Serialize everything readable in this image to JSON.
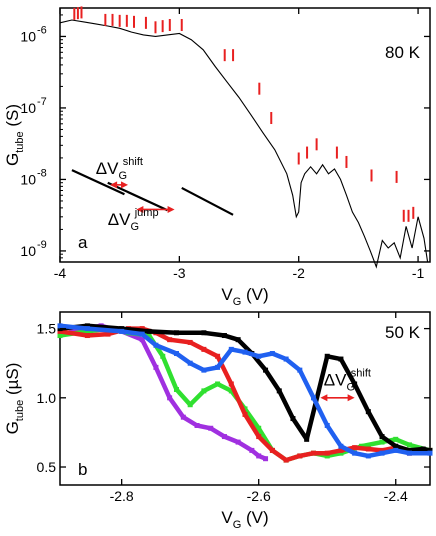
{
  "chart_data": [
    {
      "id": "a",
      "type": "line",
      "panel_label": "a",
      "annotation": "80 K",
      "xlabel": {
        "main": "V",
        "sub": "G",
        "unit": " (V)"
      },
      "ylabel": {
        "main": "G",
        "sub": "tube",
        "unit": " (S)"
      },
      "xlim": [
        -4.0,
        -0.9
      ],
      "ylim": [
        7e-10,
        2.5e-06
      ],
      "yscale": "log",
      "xticks": [
        -4,
        -3,
        -2,
        -1
      ],
      "xticklabels": [
        "-4",
        "-3",
        "-2",
        "-1"
      ],
      "yticks": [
        1e-09,
        1e-08,
        1e-07,
        1e-06
      ],
      "yticklabels": [
        {
          "base": "10",
          "exp": "-9"
        },
        {
          "base": "10",
          "exp": "-8"
        },
        {
          "base": "10",
          "exp": "-7"
        },
        {
          "base": "10",
          "exp": "-6"
        }
      ],
      "series": [
        {
          "color": "#000000",
          "x": [
            -4.0,
            -3.9,
            -3.8,
            -3.7,
            -3.6,
            -3.5,
            -3.4,
            -3.3,
            -3.2,
            -3.1,
            -3.0,
            -2.9,
            -2.8,
            -2.7,
            -2.6,
            -2.5,
            -2.4,
            -2.3,
            -2.2,
            -2.1,
            -2.05,
            -2.02,
            -2.0,
            -1.98,
            -1.95,
            -1.9,
            -1.85,
            -1.8,
            -1.75,
            -1.7,
            -1.65,
            -1.6,
            -1.55,
            -1.5,
            -1.45,
            -1.4,
            -1.35,
            -1.3,
            -1.25,
            -1.2,
            -1.15,
            -1.1,
            -1.05,
            -1.0,
            -0.95,
            -0.92
          ],
          "y": [
            1.55e-06,
            1.7e-06,
            1.6e-06,
            1.5e-06,
            1.4e-06,
            1.3e-06,
            1.15e-06,
            1.05e-06,
            1e-06,
            1.05e-06,
            1.1e-06,
            9e-07,
            6.5e-07,
            3.8e-07,
            2.3e-07,
            1.4e-07,
            8e-08,
            4.5e-08,
            2.6e-08,
            1.2e-08,
            6e-09,
            3e-09,
            3.5e-09,
            9e-09,
            1.2e-08,
            1.5e-08,
            1.2e-08,
            1.6e-08,
            1.2e-08,
            1.4e-08,
            1e-08,
            6e-09,
            3.5e-09,
            2.5e-09,
            1.6e-09,
            1e-09,
            6e-10,
            1.4e-09,
            1.1e-09,
            1.3e-09,
            8e-10,
            2.2e-09,
            1.1e-09,
            3e-09,
            1.5e-09,
            7e-10
          ]
        }
      ],
      "jump_marks": {
        "color": "#e82020",
        "points": [
          [
            -3.88,
            2e-06
          ],
          [
            -3.85,
            2.05e-06
          ],
          [
            -3.82,
            2.1e-06
          ],
          [
            -3.62,
            1.65e-06
          ],
          [
            -3.56,
            1.65e-06
          ],
          [
            -3.5,
            1.6e-06
          ],
          [
            -3.44,
            1.6e-06
          ],
          [
            -3.38,
            1.55e-06
          ],
          [
            -3.28,
            1.5e-06
          ],
          [
            -3.2,
            1.3e-06
          ],
          [
            -3.14,
            1.35e-06
          ],
          [
            -3.08,
            1.4e-06
          ],
          [
            -2.98,
            1.4e-06
          ],
          [
            -2.62,
            5.3e-07
          ],
          [
            -2.55,
            5.3e-07
          ],
          [
            -2.33,
            1.8e-07
          ],
          [
            -2.23,
            7e-08
          ],
          [
            -2.0,
            1.9e-08
          ],
          [
            -1.93,
            2.3e-08
          ],
          [
            -1.85,
            3e-08
          ],
          [
            -1.68,
            2.3e-08
          ],
          [
            -1.6,
            1.7e-08
          ],
          [
            -1.39,
            1.1e-08
          ],
          [
            -1.18,
            1.05e-08
          ],
          [
            -1.12,
            3e-09
          ],
          [
            -1.08,
            3e-09
          ],
          [
            -1.04,
            3.3e-09
          ]
        ]
      },
      "inset": {
        "lines": [
          [
            [
              -3.9,
              1.35e-08
            ],
            [
              -3.46,
              6.2e-09
            ]
          ],
          [
            [
              -3.6,
              9e-09
            ],
            [
              -3.1,
              3.7e-09
            ]
          ],
          [
            [
              -2.98,
              7.6e-09
            ],
            [
              -2.55,
              3.2e-09
            ]
          ]
        ],
        "shift_arrow": [
          [
            -3.58,
            8.4e-09
          ],
          [
            -3.43,
            8.4e-09
          ]
        ],
        "jump_arrow": [
          [
            -3.36,
            3.8e-09
          ],
          [
            -3.04,
            3.8e-09
          ]
        ],
        "shift_label": {
          "main": "ΔV",
          "sub": "G",
          "sup": "shift",
          "at": [
            -3.7,
            1.2e-08
          ]
        },
        "jump_label": {
          "main": "ΔV",
          "sub": "G",
          "sup": "jump",
          "at": [
            -3.6,
            2.3e-09
          ]
        }
      }
    },
    {
      "id": "b",
      "type": "scatter",
      "panel_label": "b",
      "annotation": "50 K",
      "xlabel": {
        "main": "V",
        "sub": "G",
        "unit": " (V)"
      },
      "ylabel": {
        "main": "G",
        "sub": "tube",
        "unit": " (µS)"
      },
      "xlim": [
        -2.89,
        -2.35
      ],
      "ylim": [
        0.37,
        1.62
      ],
      "xticks": [
        -2.8,
        -2.6,
        -2.4
      ],
      "xticklabels": [
        "-2.8",
        "-2.6",
        "-2.4"
      ],
      "yticks": [
        0.5,
        1.0,
        1.5
      ],
      "yticklabels": [
        "0.5",
        "1.0",
        "1.5"
      ],
      "series": [
        {
          "color": "#a030e0",
          "x": [
            -2.89,
            -2.86,
            -2.83,
            -2.8,
            -2.77,
            -2.75,
            -2.73,
            -2.71,
            -2.69,
            -2.67,
            -2.65,
            -2.63,
            -2.61,
            -2.6,
            -2.59
          ],
          "y": [
            1.45,
            1.5,
            1.52,
            1.48,
            1.42,
            1.22,
            1.0,
            0.86,
            0.8,
            0.78,
            0.72,
            0.68,
            0.62,
            0.58,
            0.56
          ]
        },
        {
          "color": "#30e030",
          "x": [
            -2.89,
            -2.85,
            -2.82,
            -2.79,
            -2.76,
            -2.74,
            -2.72,
            -2.7,
            -2.68,
            -2.66,
            -2.64,
            -2.62,
            -2.6,
            -2.58,
            -2.56,
            -2.54,
            -2.52,
            -2.5,
            -2.48,
            -2.45,
            -2.42,
            -2.4,
            -2.38,
            -2.35
          ],
          "y": [
            1.45,
            1.48,
            1.5,
            1.47,
            1.45,
            1.3,
            1.06,
            0.95,
            1.05,
            1.1,
            1.05,
            0.92,
            0.78,
            0.62,
            0.55,
            0.58,
            0.6,
            0.58,
            0.6,
            0.65,
            0.68,
            0.7,
            0.66,
            0.62
          ]
        },
        {
          "color": "#e82020",
          "x": [
            -2.89,
            -2.85,
            -2.82,
            -2.79,
            -2.77,
            -2.75,
            -2.73,
            -2.7,
            -2.68,
            -2.66,
            -2.64,
            -2.62,
            -2.6,
            -2.58,
            -2.56,
            -2.54,
            -2.52,
            -2.5,
            -2.48,
            -2.46,
            -2.44,
            -2.42,
            -2.4,
            -2.38,
            -2.35
          ],
          "y": [
            1.48,
            1.45,
            1.46,
            1.5,
            1.5,
            1.47,
            1.42,
            1.4,
            1.35,
            1.3,
            1.1,
            0.88,
            0.72,
            0.62,
            0.55,
            0.58,
            0.6,
            0.6,
            0.62,
            0.64,
            0.63,
            0.62,
            0.64,
            0.6,
            0.62
          ]
        },
        {
          "color": "#000000",
          "x": [
            -2.89,
            -2.85,
            -2.8,
            -2.76,
            -2.72,
            -2.68,
            -2.65,
            -2.63,
            -2.61,
            -2.59,
            -2.57,
            -2.55,
            -2.53,
            -2.5,
            -2.48,
            -2.46,
            -2.44,
            -2.42,
            -2.4,
            -2.38,
            -2.36,
            -2.35
          ],
          "y": [
            1.5,
            1.52,
            1.5,
            1.48,
            1.47,
            1.47,
            1.45,
            1.42,
            1.32,
            1.2,
            1.05,
            0.85,
            0.7,
            1.3,
            1.28,
            1.1,
            0.9,
            0.72,
            0.65,
            0.62,
            0.63,
            0.62
          ]
        },
        {
          "color": "#2060f0",
          "x": [
            -2.89,
            -2.85,
            -2.8,
            -2.77,
            -2.75,
            -2.72,
            -2.7,
            -2.68,
            -2.66,
            -2.64,
            -2.62,
            -2.6,
            -2.58,
            -2.56,
            -2.54,
            -2.52,
            -2.5,
            -2.48,
            -2.46,
            -2.44,
            -2.42,
            -2.4,
            -2.38,
            -2.35
          ],
          "y": [
            1.52,
            1.5,
            1.48,
            1.46,
            1.38,
            1.32,
            1.25,
            1.2,
            1.22,
            1.35,
            1.33,
            1.3,
            1.32,
            1.28,
            1.2,
            1.0,
            0.8,
            0.65,
            0.6,
            0.58,
            0.6,
            0.62,
            0.6,
            0.6
          ]
        }
      ],
      "shift_arrow": [
        [
          -2.51,
          1.0
        ],
        [
          -2.46,
          1.0
        ]
      ],
      "shift_label": {
        "main": "ΔV",
        "sub": "G",
        "sup": "shift",
        "at": [
          -2.505,
          1.09
        ]
      }
    }
  ]
}
